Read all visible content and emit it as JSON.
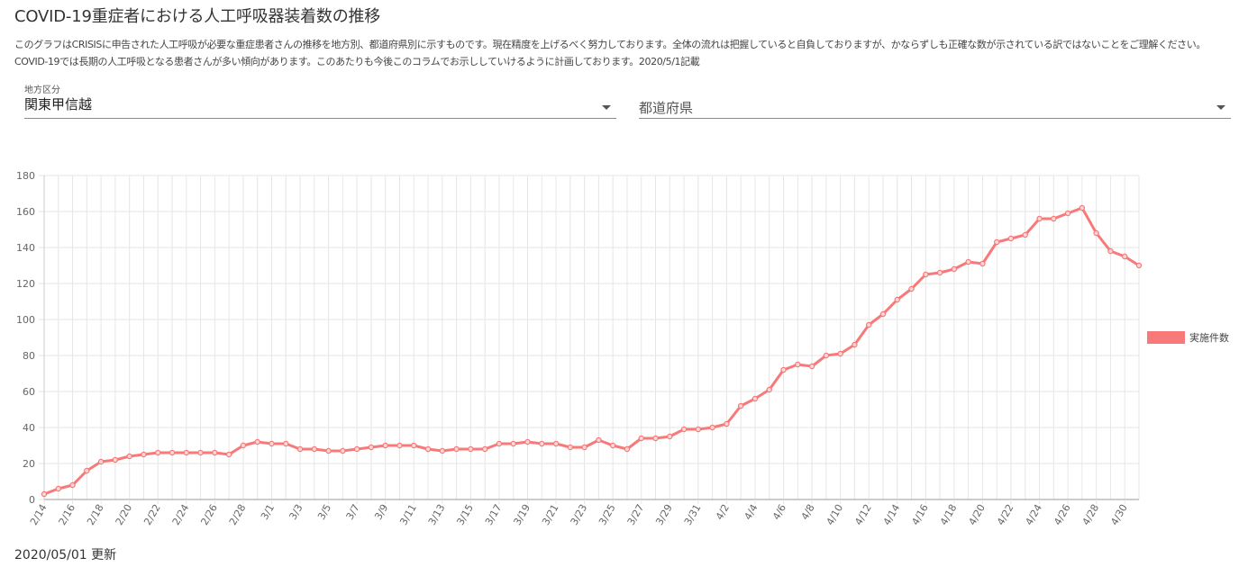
{
  "title": "COVID-19重症者における人工呼吸器装着数の推移",
  "description": "このグラフはCRISISに申告された人工呼吸が必要な重症患者さんの推移を地方別、都道府県別に示すものです。現在精度を上げるべく努力しております。全体の流れは把握していると自負しておりますが、かならずしも正確な数が示されている訳ではないことをご理解ください。COVID-19では長期の人工呼吸となる患者さんが多い傾向があります。このあたりも今後このコラムでお示ししていけるように計画しております。2020/5/1記載",
  "filters": {
    "region": {
      "label": "地方区分",
      "value": "関東甲信越"
    },
    "prefecture": {
      "placeholder": "都道府県"
    }
  },
  "updated": "2020/05/01 更新",
  "colors": {
    "series": "#f87979",
    "grid": "#e6e6e6",
    "axis": "#666666"
  },
  "chart_data": {
    "type": "line",
    "title": "",
    "xlabel": "",
    "ylabel": "",
    "ylim": [
      0,
      180
    ],
    "yticks": [
      0,
      20,
      40,
      60,
      80,
      100,
      120,
      140,
      160,
      180
    ],
    "grid": true,
    "legend_position": "right",
    "x": [
      "2/14",
      "2/15",
      "2/16",
      "2/17",
      "2/18",
      "2/19",
      "2/20",
      "2/21",
      "2/22",
      "2/23",
      "2/24",
      "2/25",
      "2/26",
      "2/27",
      "2/28",
      "2/29",
      "3/1",
      "3/2",
      "3/3",
      "3/4",
      "3/5",
      "3/6",
      "3/7",
      "3/8",
      "3/9",
      "3/10",
      "3/11",
      "3/12",
      "3/13",
      "3/14",
      "3/15",
      "3/16",
      "3/17",
      "3/18",
      "3/19",
      "3/20",
      "3/21",
      "3/22",
      "3/23",
      "3/24",
      "3/25",
      "3/26",
      "3/27",
      "3/28",
      "3/29",
      "3/30",
      "3/31",
      "4/1",
      "4/2",
      "4/3",
      "4/4",
      "4/5",
      "4/6",
      "4/7",
      "4/8",
      "4/9",
      "4/10",
      "4/11",
      "4/12",
      "4/13",
      "4/14",
      "4/15",
      "4/16",
      "4/17",
      "4/18",
      "4/19",
      "4/20",
      "4/21",
      "4/22",
      "4/23",
      "4/24",
      "4/25",
      "4/26",
      "4/27",
      "4/28",
      "4/29",
      "4/30",
      "5/1"
    ],
    "x_tick_labels": [
      "2/14",
      "2/16",
      "2/18",
      "2/20",
      "2/22",
      "2/24",
      "2/26",
      "2/28",
      "3/1",
      "3/3",
      "3/5",
      "3/7",
      "3/9",
      "3/11",
      "3/13",
      "3/15",
      "3/17",
      "3/19",
      "3/21",
      "3/23",
      "3/25",
      "3/27",
      "3/29",
      "3/31",
      "4/2",
      "4/4",
      "4/6",
      "4/8",
      "4/10",
      "4/12",
      "4/14",
      "4/16",
      "4/18",
      "4/20",
      "4/22",
      "4/24",
      "4/26",
      "4/28",
      "4/30"
    ],
    "series": [
      {
        "name": "実施件数",
        "color": "#f87979",
        "values": [
          3,
          6,
          8,
          16,
          21,
          22,
          24,
          25,
          26,
          26,
          26,
          26,
          26,
          25,
          30,
          32,
          31,
          31,
          28,
          28,
          27,
          27,
          28,
          29,
          30,
          30,
          30,
          28,
          27,
          28,
          28,
          28,
          31,
          31,
          32,
          31,
          31,
          29,
          29,
          33,
          30,
          28,
          34,
          34,
          35,
          39,
          39,
          40,
          42,
          52,
          56,
          61,
          72,
          75,
          74,
          80,
          81,
          86,
          97,
          103,
          111,
          117,
          125,
          126,
          128,
          132,
          131,
          143,
          145,
          147,
          156,
          156,
          159,
          162,
          148,
          138,
          135,
          130
        ]
      }
    ]
  }
}
